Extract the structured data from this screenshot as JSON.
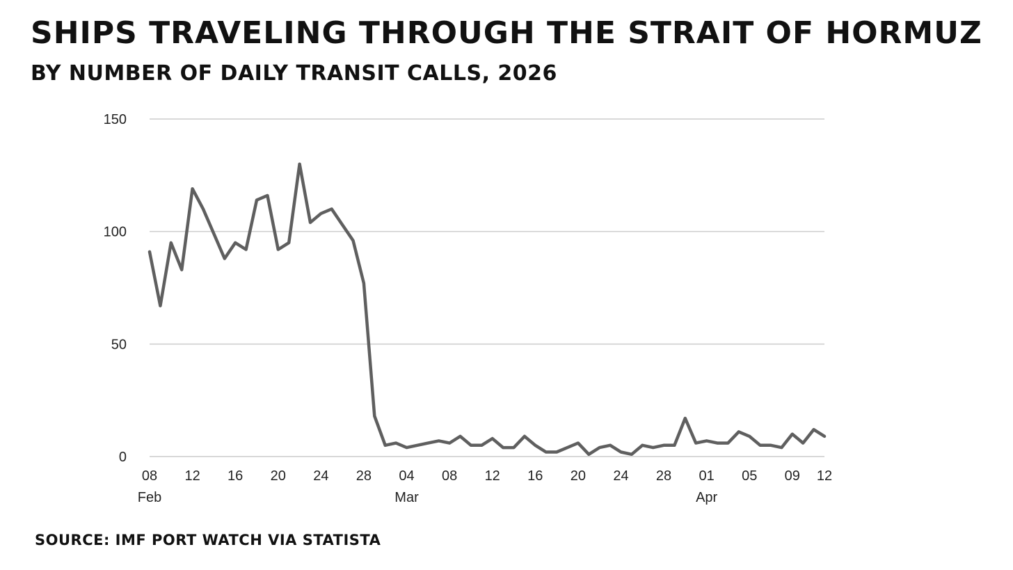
{
  "chart_data": {
    "type": "line",
    "title": "Ships traveling through the Strait of Hormuz",
    "subtitle": "By number of daily transit calls, 2026",
    "source": "Source: IMF Port Watch via Statista",
    "xlabel": "",
    "ylabel": "",
    "ylim": [
      0,
      150
    ],
    "yticks": [
      "0",
      "50",
      "100",
      "150"
    ],
    "grid": true,
    "line_color": "#5f5f5f",
    "grid_color": "#cccccc",
    "xticks": [
      {
        "index": 0,
        "label": "08",
        "month": "Feb"
      },
      {
        "index": 4,
        "label": "12",
        "month": ""
      },
      {
        "index": 8,
        "label": "16",
        "month": ""
      },
      {
        "index": 12,
        "label": "20",
        "month": ""
      },
      {
        "index": 16,
        "label": "24",
        "month": ""
      },
      {
        "index": 20,
        "label": "28",
        "month": ""
      },
      {
        "index": 24,
        "label": "04",
        "month": "Mar"
      },
      {
        "index": 28,
        "label": "08",
        "month": ""
      },
      {
        "index": 32,
        "label": "12",
        "month": ""
      },
      {
        "index": 36,
        "label": "16",
        "month": ""
      },
      {
        "index": 40,
        "label": "20",
        "month": ""
      },
      {
        "index": 44,
        "label": "24",
        "month": ""
      },
      {
        "index": 48,
        "label": "28",
        "month": ""
      },
      {
        "index": 52,
        "label": "01",
        "month": "Apr"
      },
      {
        "index": 56,
        "label": "05",
        "month": ""
      },
      {
        "index": 60,
        "label": "09",
        "month": ""
      },
      {
        "index": 63,
        "label": "12",
        "month": ""
      }
    ],
    "series": [
      {
        "values": [
          91,
          67,
          95,
          83,
          119,
          110,
          99,
          88,
          95,
          92,
          114,
          116,
          92,
          95,
          130,
          104,
          108,
          110,
          103,
          96,
          77,
          18,
          5,
          6,
          4,
          5,
          6,
          7,
          6,
          9,
          5,
          5,
          8,
          4,
          4,
          9,
          5,
          2,
          2,
          4,
          6,
          1,
          4,
          5,
          2,
          1,
          5,
          4,
          5,
          5,
          17,
          6,
          7,
          6,
          6,
          11,
          9,
          5,
          5,
          4,
          10,
          6,
          12,
          9
        ]
      }
    ]
  }
}
